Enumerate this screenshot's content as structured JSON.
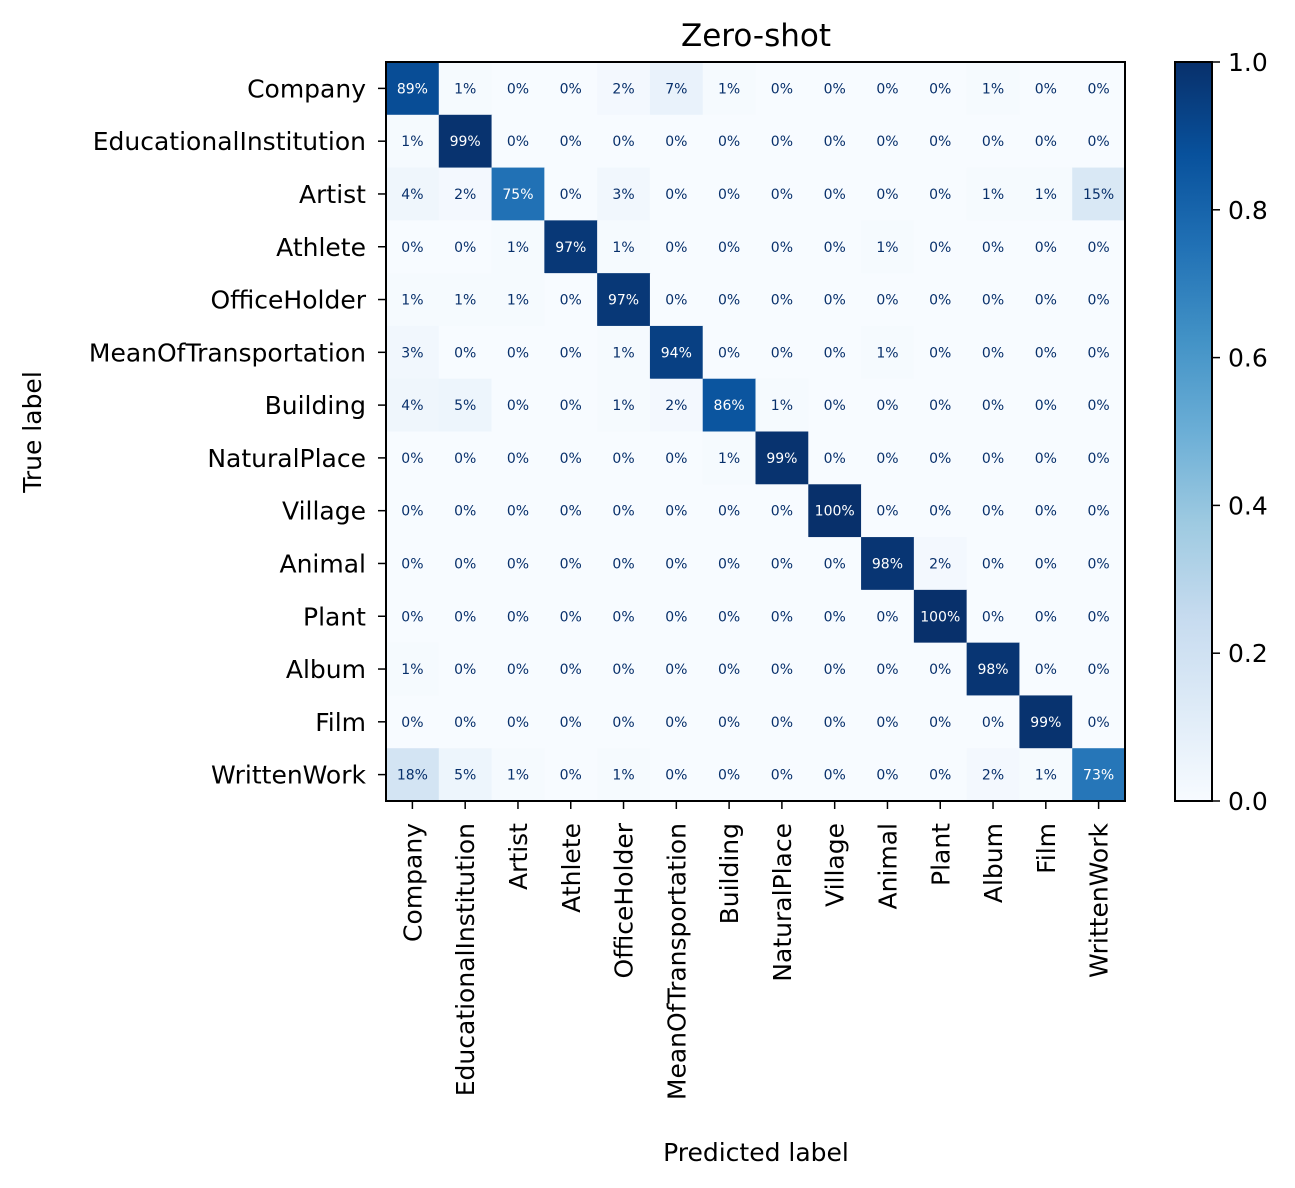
{
  "chart_data": {
    "type": "heatmap",
    "title": "Zero-shot",
    "xlabel": "Predicted label",
    "ylabel": "True label",
    "categories": [
      "Company",
      "EducationalInstitution",
      "Artist",
      "Athlete",
      "OfficeHolder",
      "MeanOfTransportation",
      "Building",
      "NaturalPlace",
      "Village",
      "Animal",
      "Plant",
      "Album",
      "Film",
      "WrittenWork"
    ],
    "values": [
      [
        0.89,
        0.01,
        0.0,
        0.0,
        0.02,
        0.07,
        0.01,
        0.0,
        0.0,
        0.0,
        0.0,
        0.01,
        0.0,
        0.0
      ],
      [
        0.01,
        0.99,
        0.0,
        0.0,
        0.0,
        0.0,
        0.0,
        0.0,
        0.0,
        0.0,
        0.0,
        0.0,
        0.0,
        0.0
      ],
      [
        0.04,
        0.02,
        0.75,
        0.0,
        0.03,
        0.0,
        0.0,
        0.0,
        0.0,
        0.0,
        0.0,
        0.01,
        0.01,
        0.15
      ],
      [
        0.0,
        0.0,
        0.01,
        0.97,
        0.01,
        0.0,
        0.0,
        0.0,
        0.0,
        0.01,
        0.0,
        0.0,
        0.0,
        0.0
      ],
      [
        0.01,
        0.01,
        0.01,
        0.0,
        0.97,
        0.0,
        0.0,
        0.0,
        0.0,
        0.0,
        0.0,
        0.0,
        0.0,
        0.0
      ],
      [
        0.03,
        0.0,
        0.0,
        0.0,
        0.01,
        0.94,
        0.0,
        0.0,
        0.0,
        0.01,
        0.0,
        0.0,
        0.0,
        0.0
      ],
      [
        0.04,
        0.05,
        0.0,
        0.0,
        0.01,
        0.02,
        0.86,
        0.01,
        0.0,
        0.0,
        0.0,
        0.0,
        0.0,
        0.0
      ],
      [
        0.0,
        0.0,
        0.0,
        0.0,
        0.0,
        0.0,
        0.01,
        0.99,
        0.0,
        0.0,
        0.0,
        0.0,
        0.0,
        0.0
      ],
      [
        0.0,
        0.0,
        0.0,
        0.0,
        0.0,
        0.0,
        0.0,
        0.0,
        1.0,
        0.0,
        0.0,
        0.0,
        0.0,
        0.0
      ],
      [
        0.0,
        0.0,
        0.0,
        0.0,
        0.0,
        0.0,
        0.0,
        0.0,
        0.0,
        0.98,
        0.02,
        0.0,
        0.0,
        0.0
      ],
      [
        0.0,
        0.0,
        0.0,
        0.0,
        0.0,
        0.0,
        0.0,
        0.0,
        0.0,
        0.0,
        1.0,
        0.0,
        0.0,
        0.0
      ],
      [
        0.01,
        0.0,
        0.0,
        0.0,
        0.0,
        0.0,
        0.0,
        0.0,
        0.0,
        0.0,
        0.0,
        0.98,
        0.0,
        0.0
      ],
      [
        0.0,
        0.0,
        0.0,
        0.0,
        0.0,
        0.0,
        0.0,
        0.0,
        0.0,
        0.0,
        0.0,
        0.0,
        0.99,
        0.0
      ],
      [
        0.18,
        0.05,
        0.01,
        0.0,
        0.01,
        0.0,
        0.0,
        0.0,
        0.0,
        0.0,
        0.0,
        0.02,
        0.01,
        0.73
      ]
    ],
    "colorbar": {
      "range": [
        0.0,
        1.0
      ],
      "ticks": [
        "0.0",
        "0.2",
        "0.4",
        "0.6",
        "0.8",
        "1.0"
      ],
      "colormap": "Blues",
      "stops": [
        "#f7fbff",
        "#deebf7",
        "#c6dbef",
        "#9ecae1",
        "#6baed6",
        "#4292c6",
        "#2171b5",
        "#08519c",
        "#08306b"
      ]
    },
    "label_colors": {
      "dark": "#08306b",
      "light": "#ffffff"
    },
    "grid": false
  }
}
